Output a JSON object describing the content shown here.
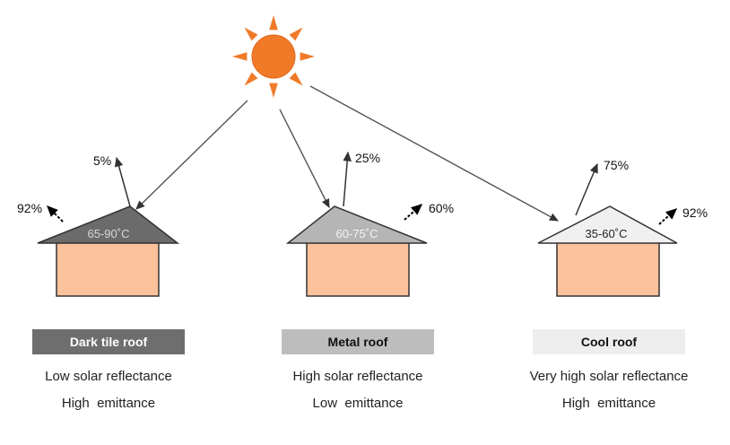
{
  "colors": {
    "sun": "#f07a28",
    "arrow": "#555555",
    "wall": "#fbc29c",
    "wall_stroke": "#333333"
  },
  "roofs": [
    {
      "temp": "65-90˚C",
      "direct": "5%",
      "emitted": "92%",
      "label": "Dark tile roof",
      "line1": "Low solar reflectance",
      "line2": "High  emittance",
      "roof_color": "#6b6b6b",
      "label_bg": "#6e6e6e",
      "label_color": "#ffffff"
    },
    {
      "temp": "60-75˚C",
      "direct": "25%",
      "emitted": "60%",
      "label": "Metal roof",
      "line1": "High solar reflectance",
      "line2": "Low  emittance",
      "roof_color": "#b5b5b5",
      "label_bg": "#bdbdbd",
      "label_color": "#111111"
    },
    {
      "temp": "35-60˚C",
      "direct": "75%",
      "emitted": "92%",
      "label": "Cool roof",
      "line1": "Very high solar reflectance",
      "line2": "High  emittance",
      "roof_color": "#f0f0f0",
      "label_bg": "#eeeeee",
      "label_color": "#111111"
    }
  ]
}
